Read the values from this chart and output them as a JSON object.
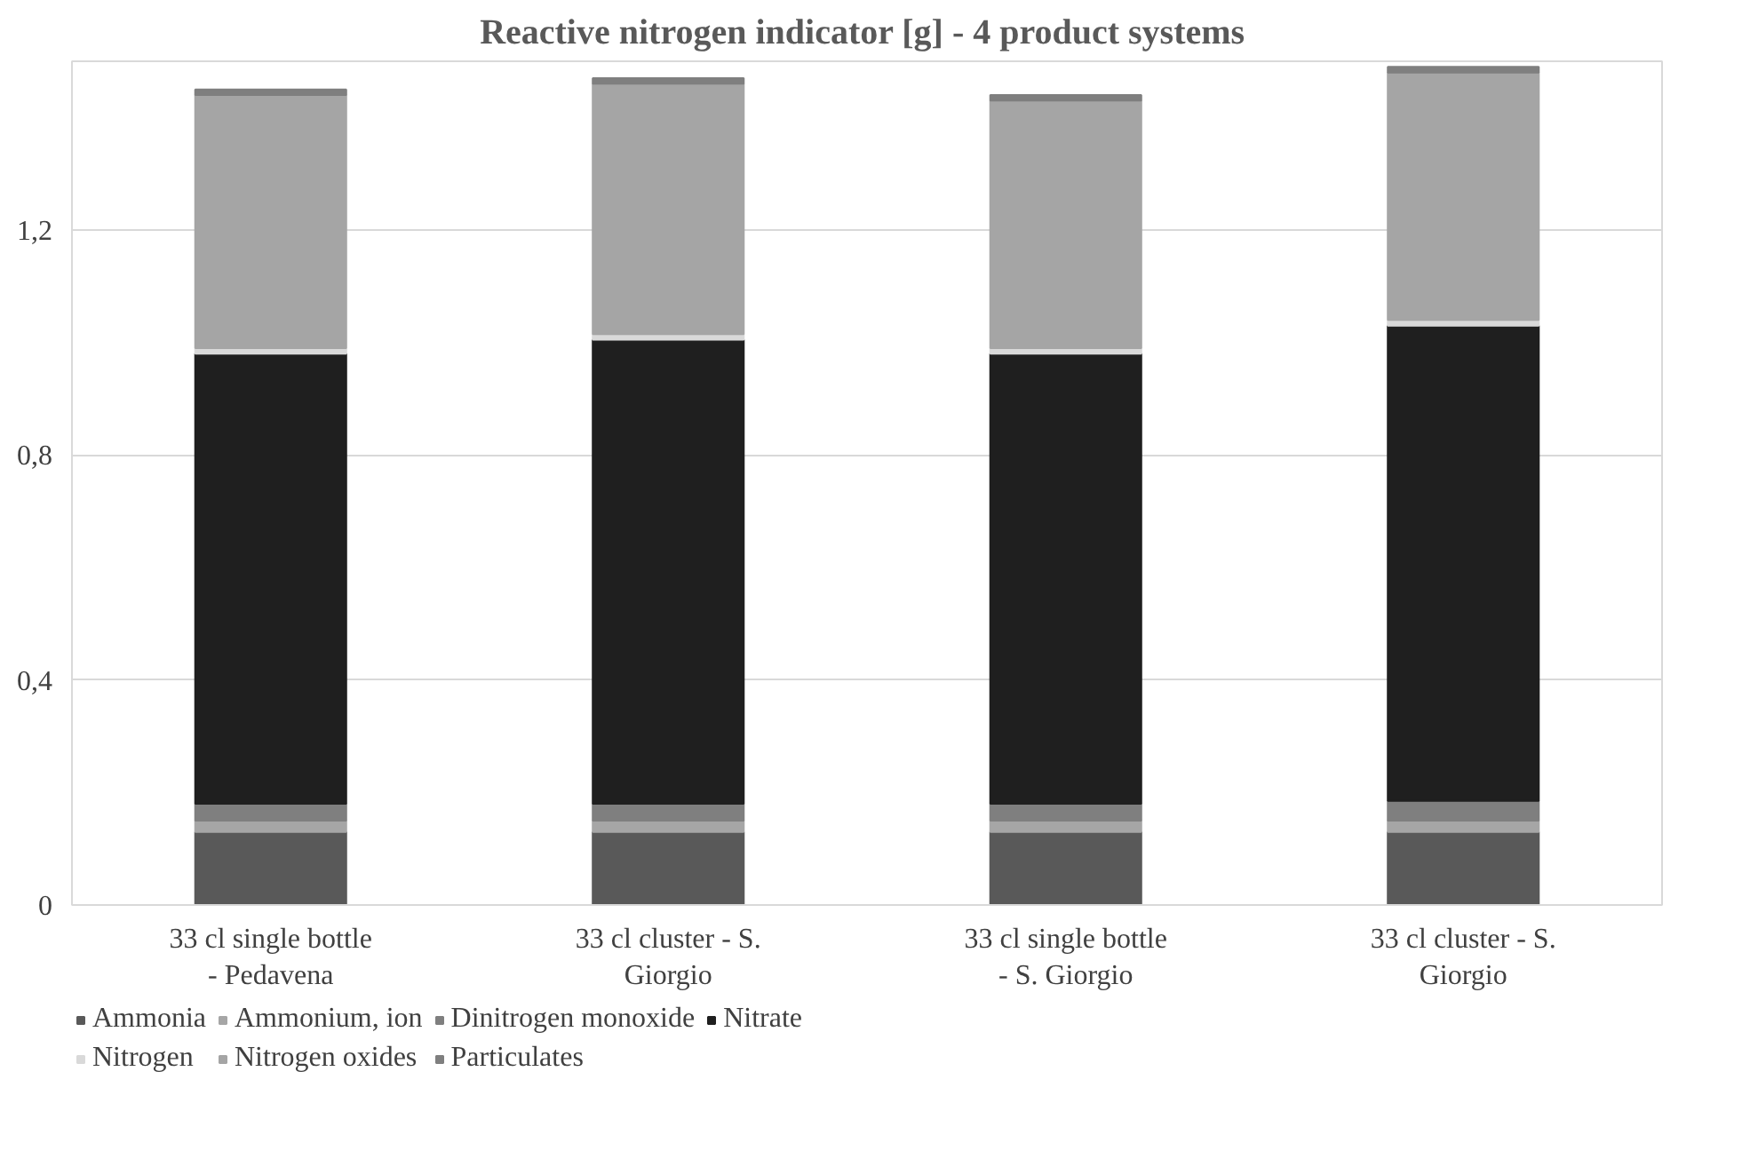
{
  "chart_data": {
    "type": "bar",
    "title": "Reactive nitrogen indicator [g]  - 4 product systems",
    "stacked": true,
    "categories": [
      "33 cl single bottle - Pedavena",
      "33 cl cluster - S. Giorgio",
      "33 cl single bottle - S. Giorgio",
      "33 cl cluster - S. Giorgio"
    ],
    "series": [
      {
        "name": "Ammonia",
        "color": "#595959",
        "values": [
          0.13,
          0.13,
          0.13,
          0.13
        ]
      },
      {
        "name": "Ammonium, ion",
        "color": "#a6a6a6",
        "values": [
          0.02,
          0.02,
          0.02,
          0.02
        ]
      },
      {
        "name": "Dinitrogen monoxide",
        "color": "#7f7f7f",
        "values": [
          0.03,
          0.03,
          0.03,
          0.035
        ]
      },
      {
        "name": "Nitrate",
        "color": "#1f1f1f",
        "values": [
          0.8,
          0.825,
          0.8,
          0.845
        ]
      },
      {
        "name": "Nitrogen",
        "color": "#d9d9d9",
        "values": [
          0.01,
          0.01,
          0.01,
          0.01
        ]
      },
      {
        "name": "Nitrogen oxides",
        "color": "#a5a5a5",
        "values": [
          0.45,
          0.445,
          0.44,
          0.44
        ]
      },
      {
        "name": "Particulates",
        "color": "#7f7f7f",
        "values": [
          0.01,
          0.01,
          0.01,
          0.01
        ]
      }
    ],
    "ylim": [
      0,
      1.5
    ],
    "yticks": [
      {
        "value": 0,
        "label": "0"
      },
      {
        "value": 0.4,
        "label": "0,4"
      },
      {
        "value": 0.8,
        "label": "0,8"
      },
      {
        "value": 1.2,
        "label": "1,2"
      }
    ],
    "grid": "y",
    "legend": "bottom"
  }
}
